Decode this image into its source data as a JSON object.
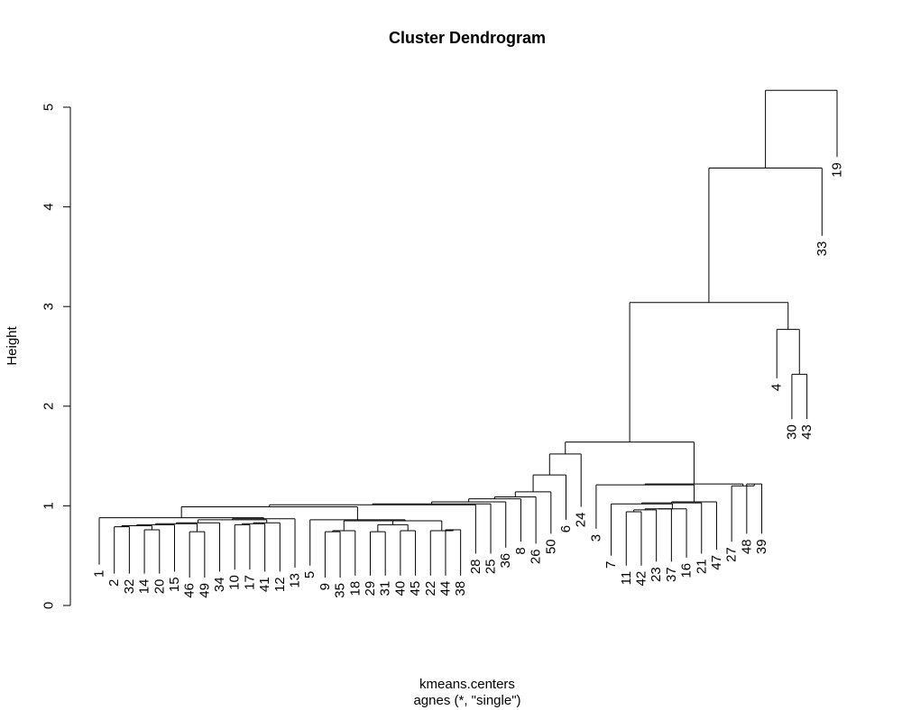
{
  "chart_data": {
    "type": "dendrogram",
    "title": "Cluster Dendrogram",
    "xlabel": "kmeans.centers",
    "sublabel": "agnes (*, \"single\")",
    "ylabel": "Height",
    "ylim": [
      0,
      5.3
    ],
    "yticks": [
      0,
      1,
      2,
      3,
      4,
      5
    ],
    "grid": false,
    "legend": "none",
    "leaves": [
      1,
      2,
      32,
      14,
      20,
      15,
      46,
      49,
      34,
      10,
      17,
      41,
      12,
      13,
      5,
      9,
      35,
      18,
      29,
      31,
      40,
      45,
      22,
      44,
      38,
      28,
      25,
      36,
      8,
      26,
      50,
      6,
      24,
      3,
      7,
      11,
      42,
      23,
      37,
      16,
      21,
      47,
      27,
      48,
      39,
      4,
      30,
      43,
      33,
      19
    ],
    "merges": [
      {
        "id": "m2_32",
        "a": 2,
        "b": 32,
        "h": 0.79
      },
      {
        "id": "m14_20",
        "a": 14,
        "b": 20,
        "h": 0.76
      },
      {
        "id": "m46_49",
        "a": 46,
        "b": 49,
        "h": 0.74
      },
      {
        "id": "m10_17",
        "a": 10,
        "b": 17,
        "h": 0.81
      },
      {
        "id": "mA1",
        "a": "m2_32",
        "b": "m14_20",
        "h": 0.8
      },
      {
        "id": "mA2",
        "a": "mA1",
        "b": 15,
        "h": 0.81
      },
      {
        "id": "mA3",
        "a": "mA2",
        "b": "m46_49",
        "h": 0.82
      },
      {
        "id": "mA4",
        "a": "mA3",
        "b": 34,
        "h": 0.83
      },
      {
        "id": "mA5",
        "a": "m10_17",
        "b": 41,
        "h": 0.82
      },
      {
        "id": "mA6",
        "a": "mA5",
        "b": 12,
        "h": 0.83
      },
      {
        "id": "mA7",
        "a": "mA4",
        "b": "mA6",
        "h": 0.86
      },
      {
        "id": "mA8",
        "a": "mA7",
        "b": 13,
        "h": 0.87
      },
      {
        "id": "mA9",
        "a": 1,
        "b": "mA8",
        "h": 0.88
      },
      {
        "id": "m9_35",
        "a": 9,
        "b": 35,
        "h": 0.74
      },
      {
        "id": "mB1",
        "a": "m9_35",
        "b": 18,
        "h": 0.75
      },
      {
        "id": "m29_31",
        "a": 29,
        "b": 31,
        "h": 0.74
      },
      {
        "id": "m40_45",
        "a": 40,
        "b": 45,
        "h": 0.75
      },
      {
        "id": "mB2",
        "a": "m29_31",
        "b": "m40_45",
        "h": 0.81
      },
      {
        "id": "mB3",
        "a": "mB1",
        "b": "mB2",
        "h": 0.85
      },
      {
        "id": "m44_38",
        "a": 44,
        "b": 38,
        "h": 0.76
      },
      {
        "id": "mB4",
        "a": 22,
        "b": "m44_38",
        "h": 0.75
      },
      {
        "id": "mB5",
        "a": "mB3",
        "b": "mB4",
        "h": 0.85
      },
      {
        "id": "mB6",
        "a": 5,
        "b": "mB5",
        "h": 0.86
      },
      {
        "id": "mC1",
        "a": "mA9",
        "b": "mB6",
        "h": 0.99
      },
      {
        "id": "mC2",
        "a": "mC1",
        "b": 28,
        "h": 1.01
      },
      {
        "id": "mC3",
        "a": "mC2",
        "b": 25,
        "h": 1.02
      },
      {
        "id": "mC4",
        "a": "mC3",
        "b": 36,
        "h": 1.04
      },
      {
        "id": "mC5",
        "a": "mC4",
        "b": 8,
        "h": 1.07
      },
      {
        "id": "mC6",
        "a": "mC5",
        "b": 26,
        "h": 1.09
      },
      {
        "id": "mC7",
        "a": "mC6",
        "b": 50,
        "h": 1.14
      },
      {
        "id": "mC8",
        "a": "mC7",
        "b": 6,
        "h": 1.31
      },
      {
        "id": "mC9",
        "a": "mC8",
        "b": 24,
        "h": 1.52
      },
      {
        "id": "m11_42",
        "a": 11,
        "b": 42,
        "h": 0.94
      },
      {
        "id": "mD1",
        "a": "m11_42",
        "b": 23,
        "h": 0.96
      },
      {
        "id": "mD2",
        "a": "mD1",
        "b": 37,
        "h": 0.97
      },
      {
        "id": "mD3",
        "a": "mD2",
        "b": 16,
        "h": 0.97
      },
      {
        "id": "mD4",
        "a": 7,
        "b": "mD3",
        "h": 1.02
      },
      {
        "id": "mD5",
        "a": "mD4",
        "b": 21,
        "h": 1.03
      },
      {
        "id": "mD6",
        "a": "mD5",
        "b": 47,
        "h": 1.04
      },
      {
        "id": "mD7",
        "a": 3,
        "b": "mD6",
        "h": 1.21
      },
      {
        "id": "m48_39",
        "a": 48,
        "b": 39,
        "h": 1.22
      },
      {
        "id": "mD8",
        "a": 27,
        "b": "m48_39",
        "h": 1.2
      },
      {
        "id": "mD9",
        "a": "mD7",
        "b": "mD8",
        "h": 1.22
      },
      {
        "id": "mE1",
        "a": "mC9",
        "b": "mD9",
        "h": 1.64
      },
      {
        "id": "m30_43",
        "a": 30,
        "b": 43,
        "h": 2.32
      },
      {
        "id": "mF1",
        "a": 4,
        "b": "m30_43",
        "h": 2.77
      },
      {
        "id": "mG1",
        "a": "mE1",
        "b": "mF1",
        "h": 3.04
      },
      {
        "id": "mG2",
        "a": "mG1",
        "b": 33,
        "h": 4.39
      },
      {
        "id": "mG3",
        "a": "mG2",
        "b": 19,
        "h": 5.17
      }
    ],
    "leaf_heights": {
      "1": 0.41,
      "2": 0.32,
      "32": 0.32,
      "14": 0.32,
      "20": 0.32,
      "15": 0.34,
      "46": 0.28,
      "49": 0.28,
      "34": 0.34,
      "10": 0.36,
      "17": 0.36,
      "41": 0.34,
      "12": 0.34,
      "13": 0.38,
      "5": 0.4,
      "9": 0.28,
      "35": 0.28,
      "18": 0.3,
      "29": 0.3,
      "31": 0.3,
      "40": 0.3,
      "45": 0.3,
      "22": 0.3,
      "44": 0.3,
      "38": 0.3,
      "28": 0.52,
      "25": 0.52,
      "36": 0.58,
      "8": 0.64,
      "26": 0.62,
      "50": 0.72,
      "6": 0.86,
      "24": 0.99,
      "3": 0.77,
      "7": 0.5,
      "11": 0.4,
      "42": 0.4,
      "23": 0.44,
      "37": 0.44,
      "16": 0.48,
      "21": 0.52,
      "47": 0.56,
      "27": 0.64,
      "48": 0.72,
      "39": 0.72,
      "4": 2.28,
      "30": 1.87,
      "43": 1.87,
      "33": 3.71,
      "19": 4.5
    }
  }
}
